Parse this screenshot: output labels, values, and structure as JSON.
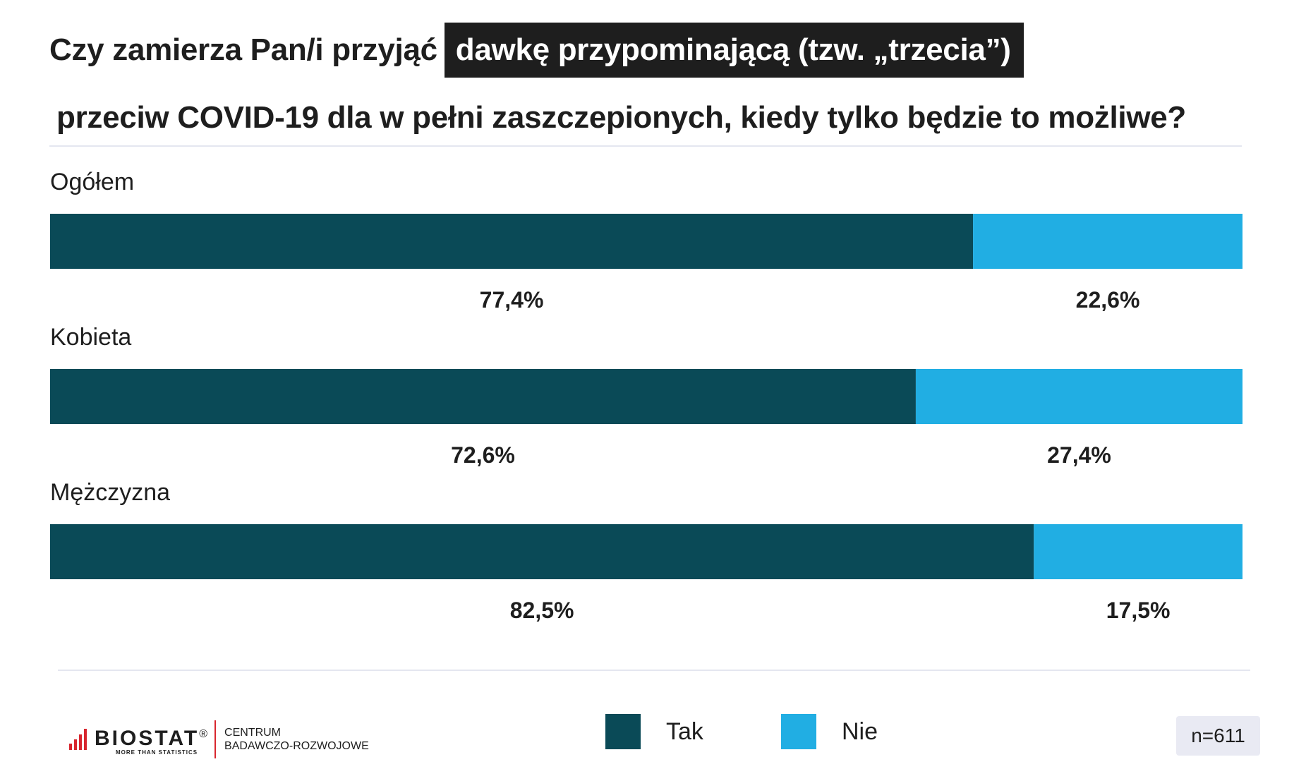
{
  "title": {
    "part1": "Czy zamierza Pan/i przyjąć",
    "highlight": "dawkę przypominającą (tzw. „trzecia”)",
    "part2": "przeciw COVID-19 dla w pełni zaszczepionych, kiedy tylko będzie to możliwe?"
  },
  "chart_data": {
    "type": "bar",
    "orientation": "horizontal",
    "stacked": true,
    "categories": [
      "Ogółem",
      "Kobieta",
      "Mężczyzna"
    ],
    "series": [
      {
        "name": "Tak",
        "color": "#0a4a57",
        "values": [
          77.4,
          72.6,
          82.5
        ],
        "labels": [
          "77,4%",
          "72,6%",
          "82,5%"
        ]
      },
      {
        "name": "Nie",
        "color": "#21aee3",
        "values": [
          22.6,
          27.4,
          17.5
        ],
        "labels": [
          "22,6%",
          "27,4%",
          "17,5%"
        ]
      }
    ],
    "xlim": [
      0,
      100
    ],
    "grid": false,
    "legend_position": "bottom"
  },
  "legend": {
    "yes": "Tak",
    "no": "Nie"
  },
  "sample": "n=611",
  "logo": {
    "name": "BIOSTAT",
    "registered": "®",
    "tagline": "MORE THAN STATISTICS",
    "sub_line1": "CENTRUM",
    "sub_line2": "BADAWCZO-ROZWOJOWE",
    "icon": "bar-chart-icon",
    "accent": "#d8262e"
  }
}
